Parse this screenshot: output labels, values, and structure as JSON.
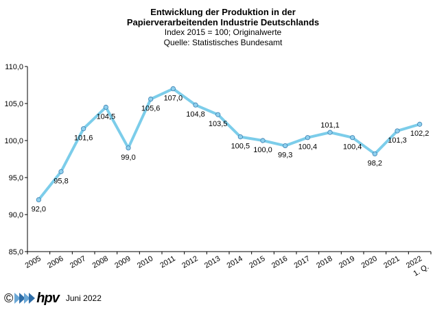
{
  "chart_data": {
    "type": "line",
    "title": [
      "Entwicklung der Produktion in der",
      "Papierverarbeitenden Industrie Deutschlands"
    ],
    "subtitle": [
      "Index 2015 = 100; Originalwerte",
      "Quelle: Statistisches Bundesamt"
    ],
    "categories": [
      "2005",
      "2006",
      "2007",
      "2008",
      "2009",
      "2010",
      "2011",
      "2012",
      "2013",
      "2014",
      "2015",
      "2016",
      "2017",
      "2018",
      "2019",
      "2020",
      "2021",
      "1. Q. 2022"
    ],
    "values": [
      92.0,
      95.8,
      101.6,
      104.5,
      99.0,
      105.6,
      107.0,
      104.8,
      103.5,
      100.5,
      100.0,
      99.3,
      100.4,
      101.1,
      100.4,
      98.2,
      101.3,
      102.2
    ],
    "data_labels": [
      "92,0",
      "95,8",
      "101,6",
      "104,5",
      "99,0",
      "105,6",
      "107,0",
      "104,8",
      "103,5",
      "100,5",
      "100,0",
      "99,3",
      "100,4",
      "101,1",
      "100,4",
      "98,2",
      "101,3",
      "102,2"
    ],
    "label_position": [
      "below",
      "below",
      "below",
      "below",
      "below",
      "below",
      "below",
      "below",
      "below",
      "below",
      "below",
      "below",
      "below",
      "above",
      "below",
      "below",
      "below",
      "below"
    ],
    "x_tick_labels": [
      "2005",
      "2006",
      "2007",
      "2008",
      "2009",
      "2010",
      "2011",
      "2012",
      "2013",
      "2014",
      "2015",
      "2016",
      "2017",
      "2018",
      "2019",
      "2020",
      "2021",
      "2022"
    ],
    "x_tick_extra": "1. Q.",
    "y_ticks": [
      "85,0",
      "90,0",
      "95,0",
      "100,0",
      "105,0",
      "110,0"
    ],
    "ylim": [
      85,
      110
    ],
    "line_color": "#7ccdea",
    "marker_color": "#8fd0ee",
    "grid": false,
    "legend": "none"
  },
  "footer": {
    "copyright_symbol": "©",
    "logo_text": "hpv",
    "date": "Juni 2022"
  }
}
